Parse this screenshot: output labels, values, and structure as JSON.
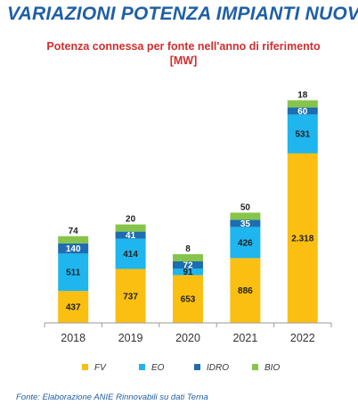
{
  "page": {
    "title": "VARIAZIONI POTENZA IMPIANTI NUOVI",
    "source": "Fonte: Elaborazione ANIE Rinnovabili su dati Terna"
  },
  "chart_data": {
    "type": "bar",
    "stacked": true,
    "title": "Potenza connessa per fonte nell'anno di riferimento [MW]",
    "xlabel": "",
    "ylabel": "",
    "ylim": [
      0,
      3000
    ],
    "grid": false,
    "legend": "bottom",
    "categories": [
      "2018",
      "2019",
      "2020",
      "2021",
      "2022"
    ],
    "series": [
      {
        "name": "FV",
        "color": "#fbbf12",
        "values": [
          437,
          737,
          653,
          886,
          2318
        ],
        "labels": [
          "437",
          "737",
          "653",
          "886",
          "2.318"
        ]
      },
      {
        "name": "EO",
        "color": "#1fb5ee",
        "values": [
          511,
          414,
          91,
          426,
          531
        ],
        "labels": [
          "511",
          "414",
          "91",
          "426",
          "531"
        ]
      },
      {
        "name": "IDRO",
        "color": "#1e6db0",
        "values": [
          140,
          41,
          72,
          35,
          60
        ],
        "labels": [
          "140",
          "41",
          "72",
          "35",
          "60"
        ]
      },
      {
        "name": "BIO",
        "color": "#86c54a",
        "values": [
          74,
          20,
          8,
          50,
          18
        ],
        "labels": [
          "74",
          "20",
          "8",
          "50",
          "18"
        ]
      }
    ]
  }
}
